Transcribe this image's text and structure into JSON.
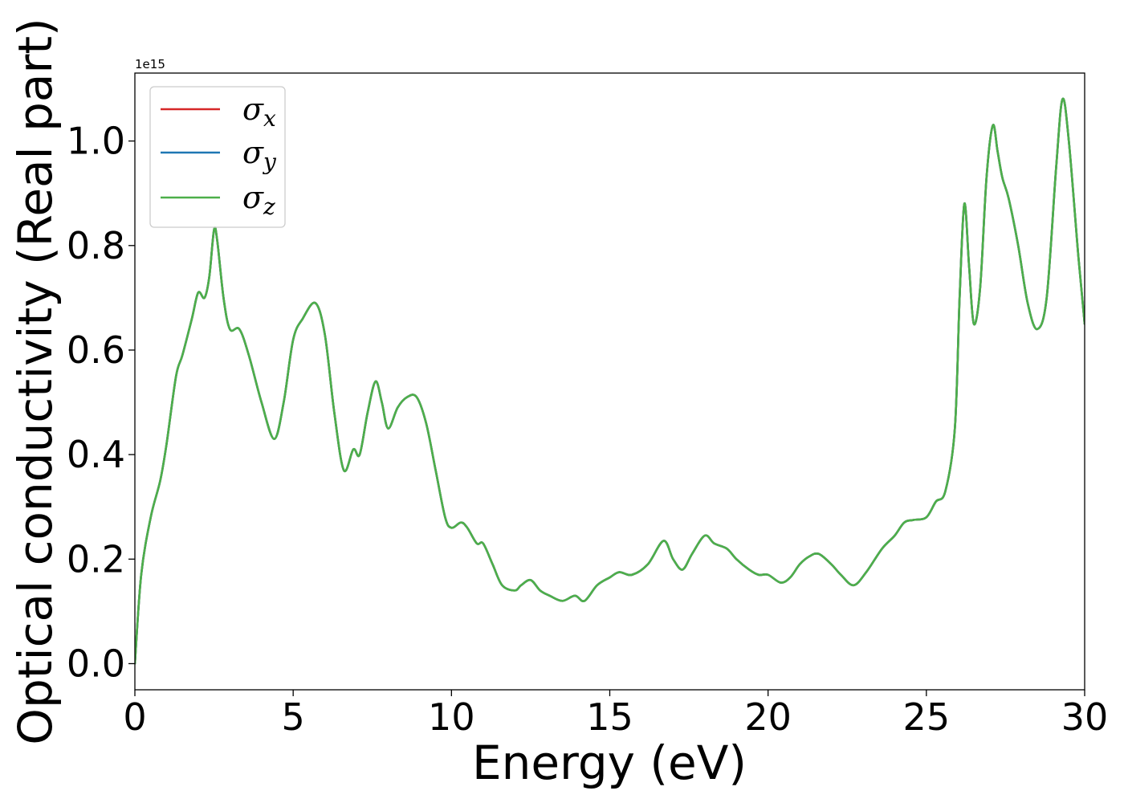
{
  "chart_data": {
    "type": "line",
    "xlabel": "Energy (eV)",
    "ylabel": "Optical conductivity (Real part)",
    "y_offset_label": "1e15",
    "xlim": [
      0,
      30
    ],
    "ylim": [
      -0.05,
      1.13
    ],
    "x_ticks": [
      0,
      5,
      10,
      15,
      20,
      25,
      30
    ],
    "x_tick_labels": [
      "0",
      "5",
      "10",
      "15",
      "20",
      "25",
      "30"
    ],
    "y_ticks": [
      0.0,
      0.2,
      0.4,
      0.6,
      0.8,
      1.0
    ],
    "y_tick_labels": [
      "0.0",
      "0.2",
      "0.4",
      "0.6",
      "0.8",
      "1.0"
    ],
    "grid": false,
    "legend_position": "top-left",
    "series": [
      {
        "name": "σx",
        "symbol": "σ",
        "subscript": "x",
        "color": "#d62728"
      },
      {
        "name": "σy",
        "symbol": "σ",
        "subscript": "y",
        "color": "#1f77b4"
      },
      {
        "name": "σz",
        "symbol": "σ",
        "subscript": "z",
        "color": "#4daf4a"
      }
    ],
    "x": [
      0,
      0.2,
      0.5,
      0.8,
      1.0,
      1.3,
      1.5,
      1.8,
      2.0,
      2.2,
      2.35,
      2.5,
      2.6,
      2.8,
      3.0,
      3.3,
      3.6,
      4.0,
      4.4,
      4.7,
      5.0,
      5.3,
      5.7,
      6.0,
      6.3,
      6.6,
      6.9,
      7.1,
      7.35,
      7.6,
      7.8,
      8.0,
      8.3,
      8.6,
      8.9,
      9.2,
      9.5,
      9.8,
      10.0,
      10.3,
      10.5,
      10.8,
      11.0,
      11.3,
      11.6,
      12.0,
      12.2,
      12.5,
      12.8,
      13.1,
      13.5,
      13.9,
      14.2,
      14.6,
      15.0,
      15.3,
      15.7,
      16.2,
      16.7,
      17.0,
      17.3,
      17.6,
      18.0,
      18.3,
      18.7,
      19.0,
      19.4,
      19.7,
      20.0,
      20.4,
      20.7,
      21.0,
      21.3,
      21.6,
      22.0,
      22.3,
      22.7,
      23.1,
      23.6,
      24.0,
      24.3,
      24.6,
      25.0,
      25.3,
      25.6,
      25.9,
      26.05,
      26.2,
      26.35,
      26.5,
      26.7,
      26.9,
      27.1,
      27.25,
      27.4,
      27.6,
      27.9,
      28.2,
      28.5,
      28.8,
      29.1,
      29.3,
      29.5,
      29.8,
      30.0
    ],
    "y": [
      0.0,
      0.17,
      0.28,
      0.35,
      0.42,
      0.55,
      0.59,
      0.66,
      0.71,
      0.7,
      0.74,
      0.83,
      0.81,
      0.7,
      0.64,
      0.64,
      0.59,
      0.5,
      0.43,
      0.5,
      0.62,
      0.66,
      0.69,
      0.63,
      0.48,
      0.37,
      0.41,
      0.4,
      0.48,
      0.54,
      0.5,
      0.45,
      0.49,
      0.51,
      0.51,
      0.46,
      0.37,
      0.28,
      0.26,
      0.27,
      0.26,
      0.23,
      0.23,
      0.19,
      0.15,
      0.14,
      0.15,
      0.16,
      0.14,
      0.13,
      0.12,
      0.13,
      0.12,
      0.15,
      0.165,
      0.175,
      0.17,
      0.19,
      0.235,
      0.2,
      0.18,
      0.21,
      0.245,
      0.23,
      0.22,
      0.2,
      0.18,
      0.17,
      0.17,
      0.155,
      0.165,
      0.19,
      0.205,
      0.21,
      0.19,
      0.17,
      0.15,
      0.175,
      0.22,
      0.245,
      0.27,
      0.275,
      0.28,
      0.31,
      0.33,
      0.45,
      0.7,
      0.88,
      0.76,
      0.65,
      0.72,
      0.93,
      1.03,
      0.98,
      0.93,
      0.89,
      0.8,
      0.69,
      0.64,
      0.7,
      0.95,
      1.08,
      1.0,
      0.78,
      0.65
    ]
  }
}
